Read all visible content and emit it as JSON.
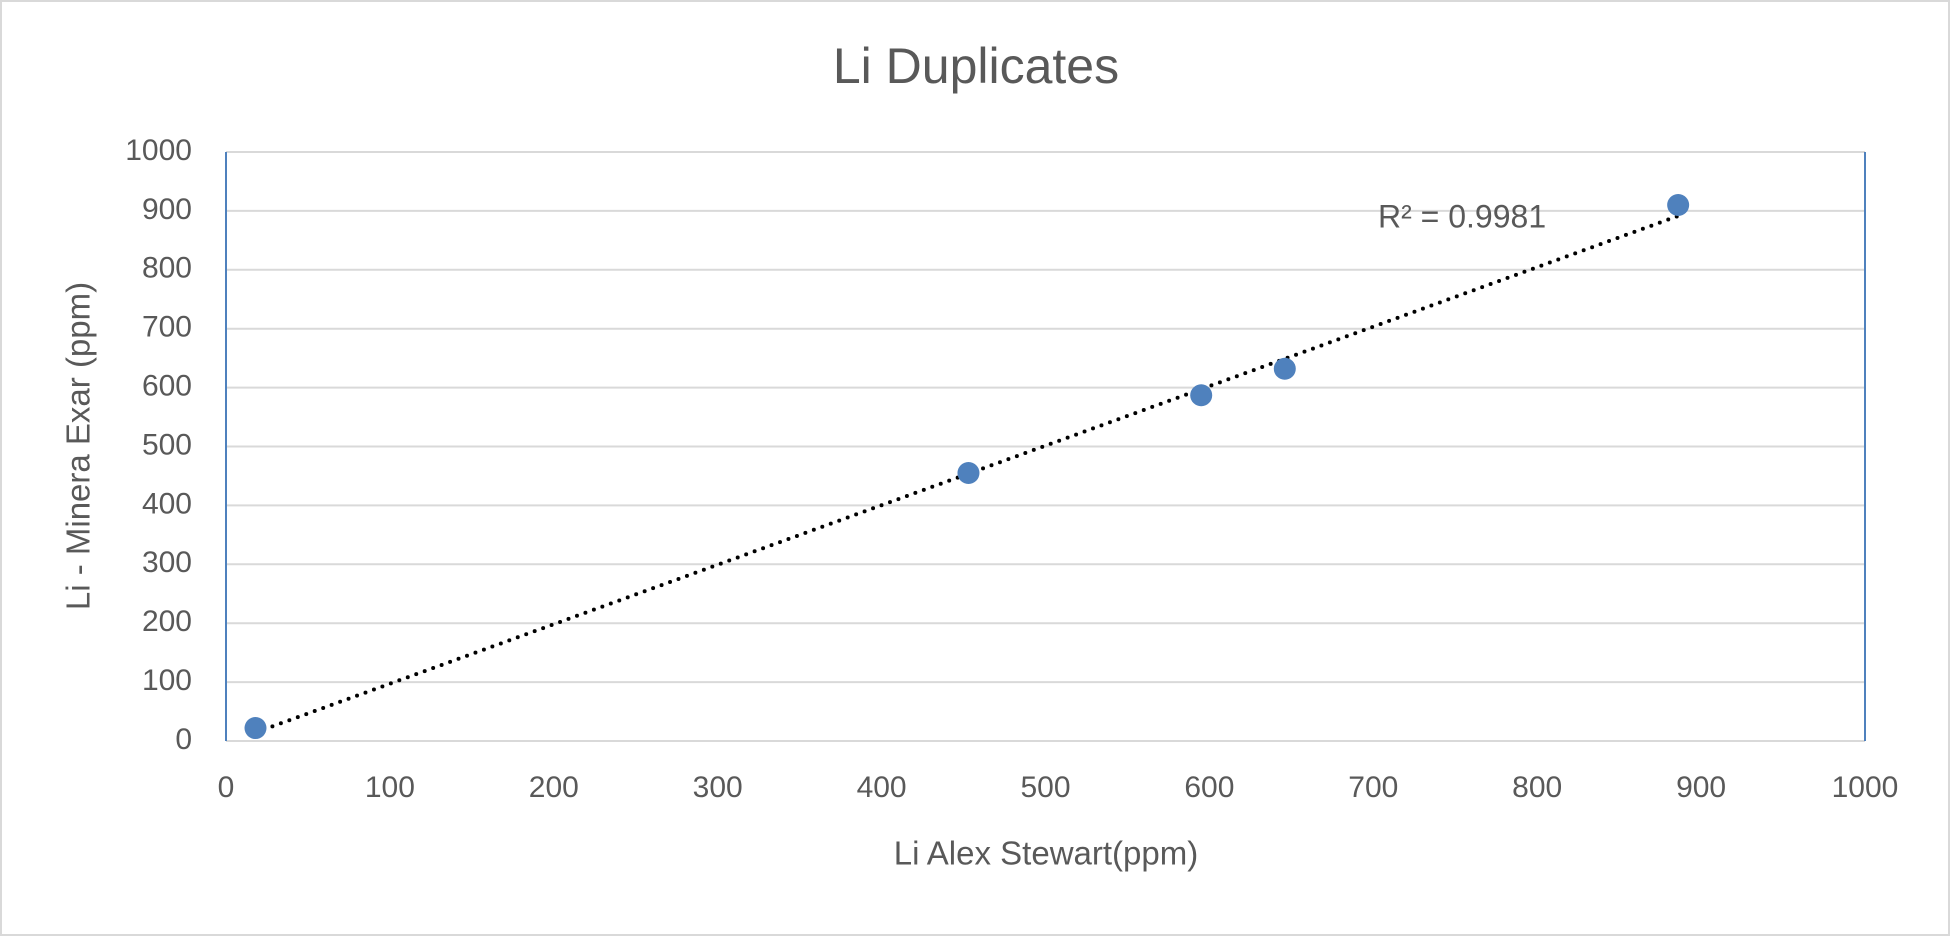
{
  "chart_data": {
    "type": "scatter",
    "title": "Li Duplicates",
    "x_label": "Li Alex Stewart(ppm)",
    "y_label": "Li - Minera Exar (ppm)",
    "series": [
      {
        "color": "#4f81bd",
        "x": [
          18,
          453,
          595,
          646,
          886
        ],
        "values": [
          22,
          455,
          587,
          632,
          910
        ]
      }
    ],
    "xlim": [
      0,
      1000
    ],
    "xticks": [
      0,
      100,
      200,
      300,
      400,
      500,
      600,
      700,
      800,
      900,
      1000
    ],
    "ylim": [
      0,
      1000
    ],
    "yticks": [
      0,
      100,
      200,
      300,
      400,
      500,
      600,
      700,
      800,
      900,
      1000
    ],
    "grid": true,
    "trendline": {
      "type": "linear",
      "label": "R² = 0.9981",
      "color": "#000000"
    }
  }
}
